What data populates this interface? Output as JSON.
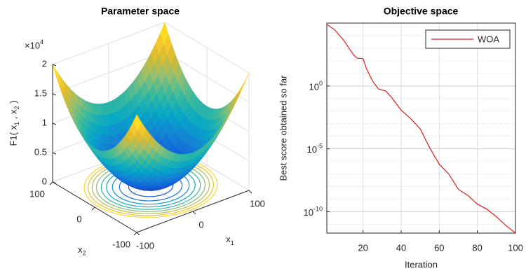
{
  "chart_data": [
    {
      "type": "surface",
      "title": "Parameter space",
      "xlabel": "x_1",
      "ylabel": "x_2",
      "zlabel": "F1( x_1 , x_2 )",
      "zexponent": "×10^4",
      "xlim": [
        -100,
        100
      ],
      "ylim": [
        -100,
        100
      ],
      "zlim": [
        0,
        2
      ],
      "xticks": [
        -100,
        0,
        100
      ],
      "yticks": [
        -100,
        0,
        100
      ],
      "zticks": [
        0,
        0.5,
        1,
        1.5,
        2
      ],
      "grid": true
    },
    {
      "type": "line",
      "title": "Objective space",
      "xlabel": "Iteration",
      "ylabel": "Best score obtained so far",
      "x": [
        1,
        5,
        10,
        15,
        17,
        20,
        22,
        25,
        28,
        32,
        35,
        40,
        45,
        50,
        55,
        60,
        65,
        70,
        75,
        80,
        85,
        90,
        95,
        100
      ],
      "series": [
        {
          "name": "WOA",
          "color": "#d62020",
          "values": [
            80000,
            30000,
            4000,
            300,
            160,
            150,
            20,
            2.5,
            0.6,
            0.4,
            0.12,
            0.012,
            0.0025,
            0.0004,
            1.2e-05,
            6e-07,
            1e-07,
            6e-09,
            2e-09,
            4e-10,
            1.6e-10,
            4e-11,
            8e-12,
            2e-12
          ]
        }
      ],
      "xlim": [
        1,
        100
      ],
      "ylim": [
        2e-12,
        100000
      ],
      "log_y": true,
      "xticks": [
        20,
        40,
        60,
        80,
        100
      ],
      "yticks": [
        {
          "value": 1,
          "label": "10^0"
        },
        {
          "value": 1e-05,
          "label": "10^-5"
        },
        {
          "value": 1e-10,
          "label": "10^-10"
        }
      ],
      "grid": true,
      "legend": "northeast"
    }
  ]
}
